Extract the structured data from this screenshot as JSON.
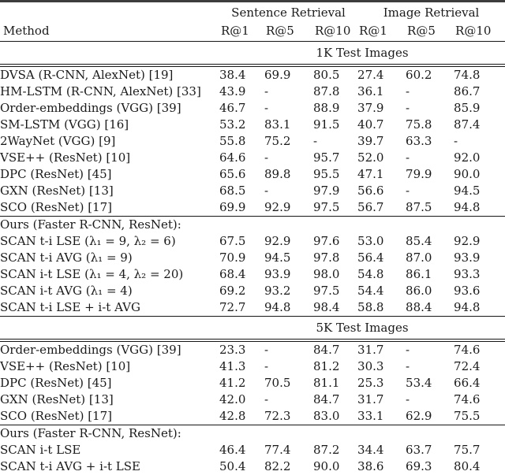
{
  "page": {
    "background": "#ffffff",
    "text_color": "#1a1a1a",
    "rule_color": "#161616",
    "outer_rule_color": "#3d3d3d"
  },
  "table": {
    "method_header": "Method",
    "group_headers": [
      {
        "label": "Sentence Retrieval"
      },
      {
        "label": "Image Retrieval"
      }
    ],
    "metric_headers": [
      "R@1",
      "R@5",
      "R@10",
      "R@1",
      "R@5",
      "R@10"
    ],
    "sections": [
      {
        "title": "1K Test Images",
        "rows": [
          {
            "method": "DVSA (R-CNN, AlexNet) [19]",
            "values": [
              "38.4",
              "69.9",
              "80.5",
              "27.4",
              "60.2",
              "74.8"
            ]
          },
          {
            "method": "HM-LSTM (R-CNN, AlexNet) [33]",
            "values": [
              "43.9",
              "-",
              "87.8",
              "36.1",
              "-",
              "86.7"
            ]
          },
          {
            "method": "Order-embeddings (VGG) [39]",
            "values": [
              "46.7",
              "-",
              "88.9",
              "37.9",
              "-",
              "85.9"
            ]
          },
          {
            "method": "SM-LSTM (VGG) [16]",
            "values": [
              "53.2",
              "83.1",
              "91.5",
              "40.7",
              "75.8",
              "87.4"
            ]
          },
          {
            "method": "2WayNet (VGG) [9]",
            "values": [
              "55.8",
              "75.2",
              "-",
              "39.7",
              "63.3",
              "-"
            ]
          },
          {
            "method": "VSE++ (ResNet) [10]",
            "values": [
              "64.6",
              "-",
              "95.7",
              "52.0",
              "-",
              "92.0"
            ]
          },
          {
            "method": "DPC (ResNet) [45]",
            "values": [
              "65.6",
              "89.8",
              "95.5",
              "47.1",
              "79.9",
              "90.0"
            ]
          },
          {
            "method": "GXN (ResNet) [13]",
            "values": [
              "68.5",
              "-",
              "97.9",
              "56.6",
              "-",
              "94.5"
            ]
          },
          {
            "method": "SCO (ResNet) [17]",
            "values": [
              "69.9",
              "92.9",
              "97.5",
              "56.7",
              "87.5",
              "94.8"
            ],
            "bold": [
              false,
              false,
              false,
              false,
              false,
              true
            ]
          },
          {
            "method": "Ours (Faster R-CNN, ResNet):",
            "values": [
              "",
              "",
              "",
              "",
              "",
              ""
            ],
            "group_start": true
          },
          {
            "method": "SCAN t-i LSE (λ₁ = 9, λ₂ = 6)",
            "values": [
              "67.5",
              "92.9",
              "97.6",
              "53.0",
              "85.4",
              "92.9"
            ]
          },
          {
            "method": "SCAN t-i AVG (λ₁ = 9)",
            "values": [
              "70.9",
              "94.5",
              "97.8",
              "56.4",
              "87.0",
              "93.9"
            ]
          },
          {
            "method": "SCAN i-t LSE (λ₁ = 4, λ₂ = 20)",
            "values": [
              "68.4",
              "93.9",
              "98.0",
              "54.8",
              "86.1",
              "93.3"
            ]
          },
          {
            "method": "SCAN i-t AVG (λ₁ = 4)",
            "values": [
              "69.2",
              "93.2",
              "97.5",
              "54.4",
              "86.0",
              "93.6"
            ]
          },
          {
            "method": "SCAN t-i LSE + i-t AVG",
            "values": [
              "72.7",
              "94.8",
              "98.4",
              "58.8",
              "88.4",
              "94.8"
            ],
            "bold_all": true
          }
        ]
      },
      {
        "title": "5K Test Images",
        "rows": [
          {
            "method": "Order-embeddings (VGG) [39]",
            "values": [
              "23.3",
              "-",
              "84.7",
              "31.7",
              "-",
              "74.6"
            ]
          },
          {
            "method": "VSE++ (ResNet) [10]",
            "values": [
              "41.3",
              "-",
              "81.2",
              "30.3",
              "-",
              "72.4"
            ]
          },
          {
            "method": "DPC (ResNet) [45]",
            "values": [
              "41.2",
              "70.5",
              "81.1",
              "25.3",
              "53.4",
              "66.4"
            ]
          },
          {
            "method": "GXN (ResNet) [13]",
            "values": [
              "42.0",
              "-",
              "84.7",
              "31.7",
              "-",
              "74.6"
            ]
          },
          {
            "method": "SCO (ResNet) [17]",
            "values": [
              "42.8",
              "72.3",
              "83.0",
              "33.1",
              "62.9",
              "75.5"
            ]
          },
          {
            "method": "Ours (Faster R-CNN, ResNet):",
            "values": [
              "",
              "",
              "",
              "",
              "",
              ""
            ],
            "group_start": true
          },
          {
            "method": "SCAN i-t LSE",
            "values": [
              "46.4",
              "77.4",
              "87.2",
              "34.4",
              "63.7",
              "75.7"
            ]
          },
          {
            "method": "SCAN t-i AVG + i-t LSE",
            "values": [
              "50.4",
              "82.2",
              "90.0",
              "38.6",
              "69.3",
              "80.4"
            ],
            "bold_all": true
          }
        ]
      }
    ]
  }
}
